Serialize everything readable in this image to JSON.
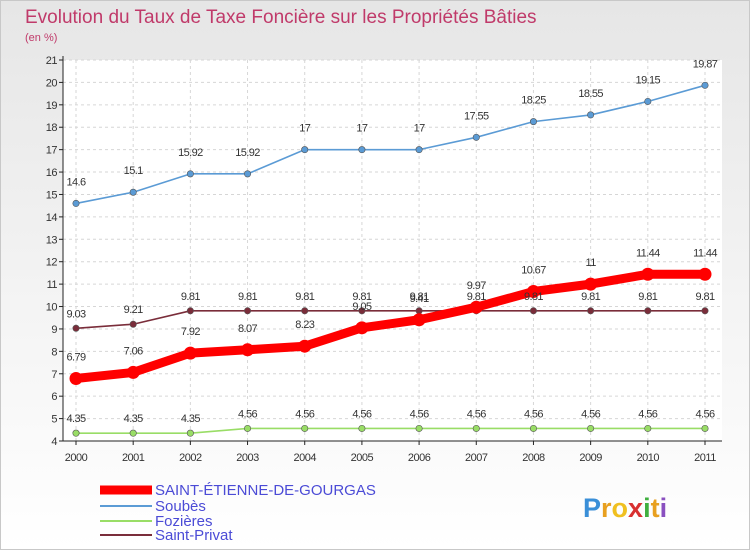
{
  "chart_data": {
    "type": "line",
    "title": "Evolution du Taux de Taxe Foncière sur les Propriétés Bâties",
    "unit_label": "(en %)",
    "x": [
      "2000",
      "2001",
      "2002",
      "2003",
      "2004",
      "2005",
      "2006",
      "2007",
      "2008",
      "2009",
      "2010",
      "2011"
    ],
    "ylim": [
      4,
      21
    ],
    "yticks": [
      "4",
      "5",
      "6",
      "7",
      "8",
      "9",
      "10",
      "11",
      "12",
      "13",
      "14",
      "15",
      "16",
      "17",
      "18",
      "19",
      "20",
      "21"
    ],
    "grid": true,
    "legend_position": "bottom-left",
    "series": [
      {
        "name": "SAINT-ÉTIENNE-DE-GOURGAS",
        "color": "#ff0000",
        "values": [
          6.79,
          7.06,
          7.92,
          8.07,
          8.23,
          9.05,
          9.41,
          9.97,
          10.67,
          11,
          11.44,
          11.44
        ],
        "labels": [
          "6.79",
          "7.06",
          "7.92",
          "8.07",
          "8.23",
          "9.05",
          "9.41",
          "9.97",
          "10.67",
          "11",
          "11.44",
          "11.44"
        ]
      },
      {
        "name": "Soubès",
        "color": "#5b9bd5",
        "values": [
          14.6,
          15.1,
          15.92,
          15.92,
          17,
          17,
          17,
          17.55,
          18.25,
          18.55,
          19.15,
          19.87
        ],
        "labels": [
          "14.6",
          "15.1",
          "15.92",
          "15.92",
          "17",
          "17",
          "17",
          "17.55",
          "18.25",
          "18.55",
          "19.15",
          "19.87"
        ]
      },
      {
        "name": "Fozières",
        "color": "#99dd66",
        "values": [
          4.35,
          4.35,
          4.35,
          4.56,
          4.56,
          4.56,
          4.56,
          4.56,
          4.56,
          4.56,
          4.56,
          4.56
        ],
        "labels": [
          "4.35",
          "4.35",
          "4.35",
          "4.56",
          "4.56",
          "4.56",
          "4.56",
          "4.56",
          "4.56",
          "4.56",
          "4.56",
          "4.56"
        ]
      },
      {
        "name": "Saint-Privat",
        "color": "#7a2d3a",
        "values": [
          9.03,
          9.21,
          9.81,
          9.81,
          9.81,
          9.81,
          9.81,
          9.81,
          9.81,
          9.81,
          9.81,
          9.81
        ],
        "labels": [
          "9.03",
          "9.21",
          "9.81",
          "9.81",
          "9.81",
          "9.81",
          "9.81",
          "9.81",
          "9.81",
          "9.81",
          "9.81",
          "9.81"
        ]
      }
    ]
  },
  "logo": {
    "letters": [
      "P",
      "r",
      "o",
      "x",
      "i",
      "t",
      "i"
    ],
    "colors": [
      "#3a8fd8",
      "#e8a020",
      "#f0c020",
      "#d83030",
      "#40b040",
      "#e8a020",
      "#8a50c0"
    ]
  }
}
